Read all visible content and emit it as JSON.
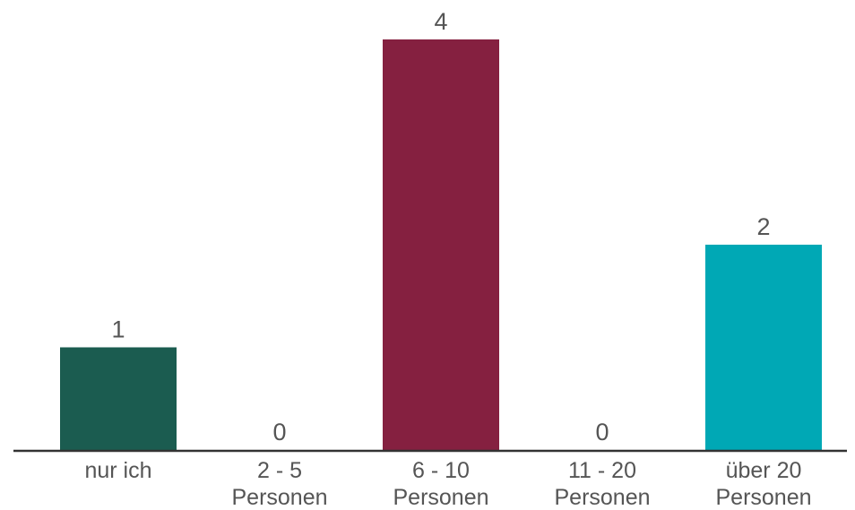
{
  "chart_data": {
    "type": "bar",
    "categories": [
      [
        "nur ich"
      ],
      [
        "2 - 5",
        "Personen"
      ],
      [
        "6 - 10",
        "Personen"
      ],
      [
        "11 - 20",
        "Personen"
      ],
      [
        "über 20",
        "Personen"
      ]
    ],
    "values": [
      1,
      0,
      4,
      0,
      2
    ],
    "colors": [
      "#1b5c50",
      "#1b5c50",
      "#852040",
      "#852040",
      "#00a8b5"
    ],
    "axis_color": "#333333",
    "title": "",
    "xlabel": "",
    "ylabel": "",
    "ylim": [
      0,
      4
    ],
    "grid": false,
    "legend": "none"
  }
}
